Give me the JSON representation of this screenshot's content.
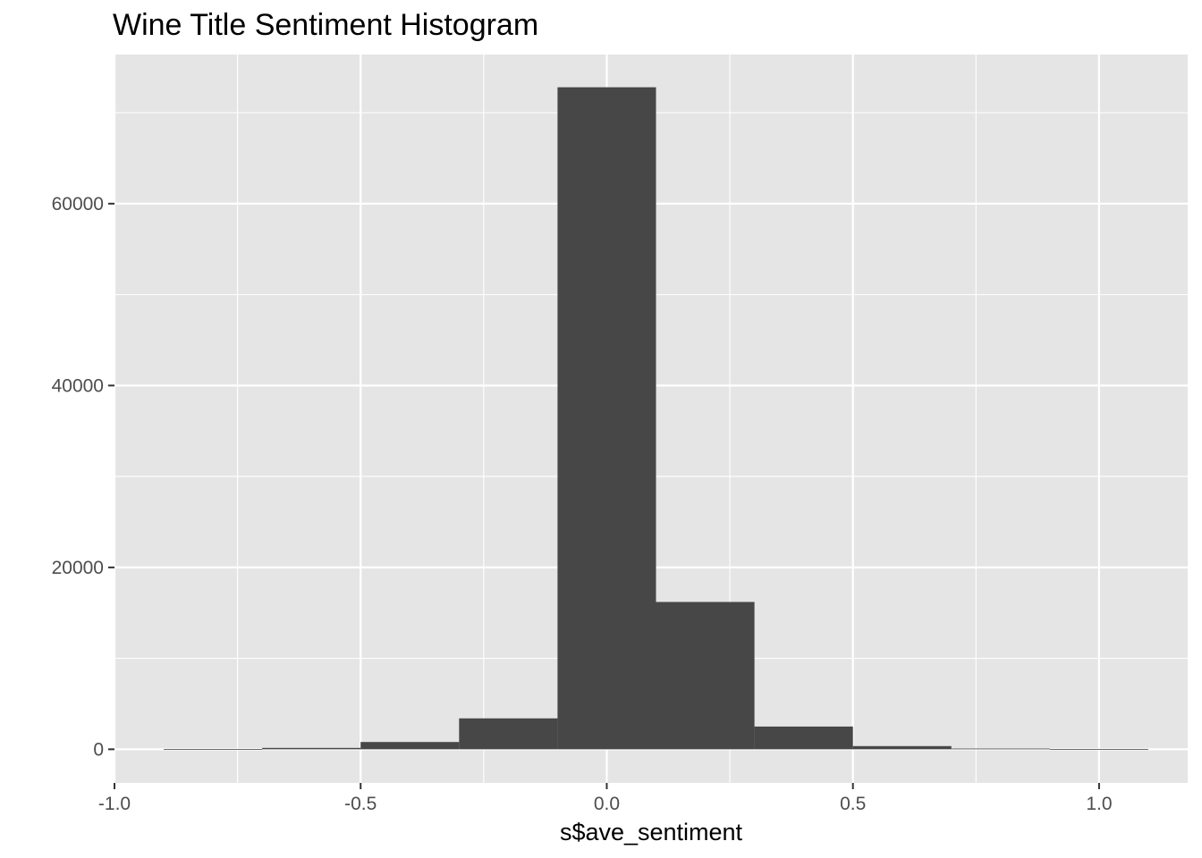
{
  "chart_data": {
    "type": "bar",
    "subtype": "histogram",
    "title": "Wine Title Sentiment Histogram",
    "xlabel": "s$ave_sentiment",
    "ylabel": "",
    "xlim": [
      -1.0,
      1.18
    ],
    "ylim": [
      -3700,
      76400
    ],
    "x_ticks": [
      -1.0,
      -0.5,
      0.0,
      0.5,
      1.0
    ],
    "x_tick_labels": [
      "-1.0",
      "-0.5",
      "0.0",
      "0.5",
      "1.0"
    ],
    "y_ticks": [
      0,
      20000,
      40000,
      60000
    ],
    "y_tick_labels": [
      "0",
      "20000",
      "40000",
      "60000"
    ],
    "grid": true,
    "legend": "none",
    "bar_color": "#474747",
    "panel_color": "#e5e5e5",
    "bins": [
      {
        "x0": -0.9,
        "x1": -0.7,
        "count": 20
      },
      {
        "x0": -0.7,
        "x1": -0.5,
        "count": 150
      },
      {
        "x0": -0.5,
        "x1": -0.3,
        "count": 800
      },
      {
        "x0": -0.3,
        "x1": -0.1,
        "count": 3400
      },
      {
        "x0": -0.1,
        "x1": 0.1,
        "count": 72800
      },
      {
        "x0": 0.1,
        "x1": 0.3,
        "count": 16200
      },
      {
        "x0": 0.3,
        "x1": 0.5,
        "count": 2500
      },
      {
        "x0": 0.5,
        "x1": 0.7,
        "count": 350
      },
      {
        "x0": 0.7,
        "x1": 0.9,
        "count": 80
      },
      {
        "x0": 0.9,
        "x1": 1.1,
        "count": 20
      }
    ]
  }
}
